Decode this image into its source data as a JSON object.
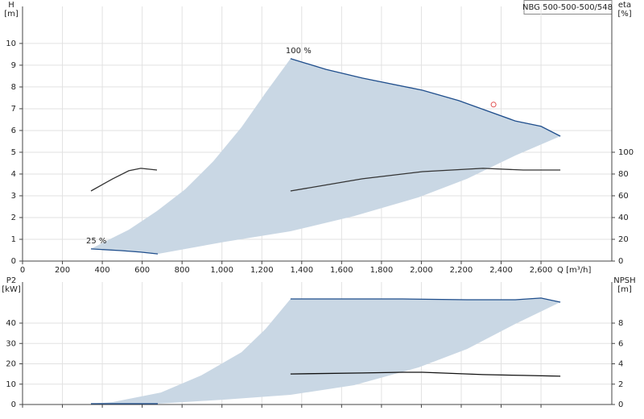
{
  "tag": "NBG 500-500-500/548",
  "chart_data": [
    {
      "type": "line",
      "ylabel": "H",
      "yunit": "[m]",
      "y2label": "eta",
      "y2unit": "[%]",
      "xlabel": "Q [m³/h]",
      "xlim": [
        0,
        2955
      ],
      "ylim": [
        0,
        11.7
      ],
      "y2lim": [
        0,
        234
      ],
      "grid": true,
      "xtick_labels": true,
      "xticks": [
        0,
        200,
        400,
        600,
        800,
        {
          "value": 1000,
          "label": "1,000"
        },
        {
          "value": 1200,
          "label": "1,200"
        },
        {
          "value": 1400,
          "label": "1,400"
        },
        {
          "value": 1600,
          "label": "1,600"
        },
        {
          "value": 1800,
          "label": "1,800"
        },
        {
          "value": 2000,
          "label": "2,000"
        },
        {
          "value": 2200,
          "label": "2,200"
        },
        {
          "value": 2400,
          "label": "2,400"
        },
        {
          "value": 2600,
          "label": "2,600"
        }
      ],
      "yticks": [
        0,
        1,
        2,
        3,
        4,
        5,
        6,
        7,
        8,
        9,
        10
      ],
      "y2ticks": [
        0,
        20,
        40,
        60,
        80,
        100
      ],
      "series": [
        {
          "style": "area",
          "color": "#c9d7e4",
          "x": [
            343,
            412,
            533,
            674,
            816,
            957,
            1098,
            1219,
            1344,
            1522,
            1704,
            2006,
            2188,
            2471,
            2600,
            2697,
            2471,
            2229,
            1986,
            1663,
            1344,
            1017,
            678,
            593,
            493
          ],
          "values": [
            0.56,
            0.89,
            1.44,
            2.3,
            3.3,
            4.59,
            6.15,
            7.74,
            9.3,
            8.81,
            8.41,
            7.85,
            7.37,
            6.44,
            6.19,
            5.74,
            4.85,
            3.78,
            2.93,
            2.07,
            1.37,
            0.89,
            0.33,
            0.41,
            0.48
          ]
        },
        {
          "style": "line",
          "color": "#1f4e8c",
          "label": "100 %",
          "x": [
            1344,
            1522,
            1704,
            2006,
            2188,
            2471,
            2600,
            2697
          ],
          "values": [
            9.3,
            8.81,
            8.41,
            7.85,
            7.37,
            6.44,
            6.19,
            5.74
          ]
        },
        {
          "style": "line",
          "color": "#1f4e8c",
          "label": "25 %",
          "x": [
            343,
            493,
            593,
            678
          ],
          "values": [
            0.56,
            0.48,
            0.41,
            0.33
          ]
        },
        {
          "style": "line",
          "color": "#333333",
          "axis": "y2",
          "x": [
            343,
            452,
            533,
            593,
            674
          ],
          "values": [
            64.4,
            75.6,
            83,
            85.2,
            83.7
          ]
        },
        {
          "style": "line",
          "color": "#333333",
          "axis": "y2",
          "x": [
            1344,
            1704,
            2006,
            2309,
            2511,
            2697
          ],
          "values": [
            64.4,
            75.6,
            82.2,
            85.2,
            83.7,
            83.7
          ]
        },
        {
          "style": "marker",
          "color": "#e05050",
          "x": [
            2362
          ],
          "values": [
            7.19
          ]
        }
      ]
    },
    {
      "type": "line",
      "ylabel": "P2",
      "yunit": "[kW]",
      "y2label": "NPSH",
      "y2unit": "[m]",
      "xlim": [
        0,
        2955
      ],
      "ylim": [
        0,
        60.2
      ],
      "y2lim": [
        0,
        12.04
      ],
      "grid": true,
      "xtick_labels": false,
      "xticks": [
        0,
        200,
        400,
        600,
        800,
        1000,
        1200,
        1400,
        1600,
        1800,
        2000,
        2200,
        2400,
        2600
      ],
      "yticks": [
        0,
        10,
        20,
        30,
        40
      ],
      "y2ticks": [
        0,
        2,
        4,
        6,
        8
      ],
      "series": [
        {
          "style": "area",
          "color": "#c9d7e4",
          "x": [
            343,
            452,
            694,
            896,
            1098,
            1219,
            1344,
            1906,
            2229,
            2471,
            2600,
            2697,
            2471,
            2229,
            1986,
            1663,
            1344,
            1017,
            678
          ],
          "values": [
            0.4,
            1.2,
            5.9,
            14.3,
            25.7,
            37.2,
            51.9,
            51.9,
            51.5,
            51.5,
            52.3,
            50.3,
            39.6,
            27.3,
            18.2,
            9.5,
            4.75,
            2.4,
            0.4
          ]
        },
        {
          "style": "line",
          "color": "#1f4e8c",
          "x": [
            1344,
            1906,
            2229,
            2471,
            2600,
            2697
          ],
          "values": [
            51.9,
            51.9,
            51.5,
            51.5,
            52.3,
            50.3
          ]
        },
        {
          "style": "line",
          "color": "#1f4e8c",
          "x": [
            343,
            678
          ],
          "values": [
            0.4,
            0.4
          ]
        },
        {
          "style": "line",
          "color": "#111111",
          "axis": "y2",
          "x": [
            1344,
            1704,
            1906,
            2006,
            2309,
            2511,
            2697
          ],
          "values": [
            3.0,
            3.1,
            3.17,
            3.17,
            2.94,
            2.86,
            2.78
          ]
        }
      ]
    }
  ]
}
